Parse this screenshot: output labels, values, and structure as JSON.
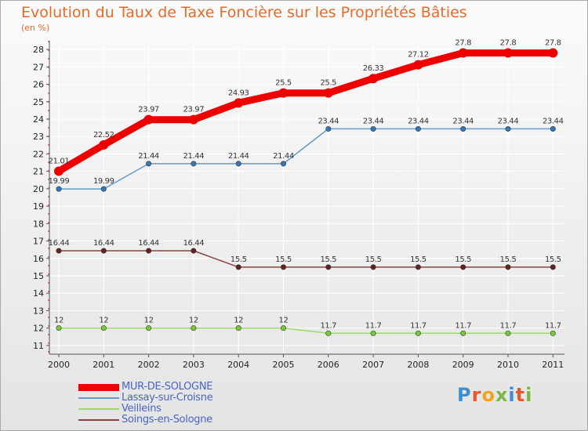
{
  "chart_data": {
    "type": "line",
    "title": "Evolution du Taux de Taxe Foncière sur les Propriétés Bâties",
    "unit_label": "(en %)",
    "x": [
      "2000",
      "2001",
      "2002",
      "2003",
      "2004",
      "2005",
      "2006",
      "2007",
      "2008",
      "2009",
      "2010",
      "2011"
    ],
    "ylim": [
      11,
      28
    ],
    "yticks": [
      "11",
      "12",
      "13",
      "14",
      "15",
      "16",
      "17",
      "18",
      "19",
      "20",
      "21",
      "22",
      "23",
      "24",
      "25",
      "26",
      "27",
      "28"
    ],
    "grid": true,
    "legend_position": "bottom-left",
    "series": [
      {
        "name": "MUR-DE-SOLOGNE",
        "color": "#ee0000",
        "width": 9,
        "values": [
          21.01,
          22.52,
          23.97,
          23.97,
          24.93,
          25.5,
          25.5,
          26.33,
          27.12,
          27.8,
          27.8,
          27.8
        ],
        "labels": [
          "21.01",
          "22.52",
          "23.97",
          "23.97",
          "24.93",
          "25.5",
          "25.5",
          "26.33",
          "27.12",
          "27.8",
          "27.8",
          "27.8"
        ]
      },
      {
        "name": "Lassay-sur-Croisne",
        "color": "#6699cc",
        "marker": "#3377bb",
        "width": 1.5,
        "values": [
          19.99,
          19.99,
          21.44,
          21.44,
          21.44,
          21.44,
          23.44,
          23.44,
          23.44,
          23.44,
          23.44,
          23.44
        ],
        "labels": [
          "19.99",
          "19.99",
          "21.44",
          "21.44",
          "21.44",
          "21.44",
          "23.44",
          "23.44",
          "23.44",
          "23.44",
          "23.44",
          "23.44"
        ]
      },
      {
        "name": "Veilleins",
        "color": "#99dd66",
        "marker": "#77cc33",
        "width": 1.5,
        "values": [
          12,
          12,
          12,
          12,
          12,
          12,
          11.7,
          11.7,
          11.7,
          11.7,
          11.7,
          11.7
        ],
        "labels": [
          "12",
          "12",
          "12",
          "12",
          "12",
          "12",
          "11.7",
          "11.7",
          "11.7",
          "11.7",
          "11.7",
          "11.7"
        ]
      },
      {
        "name": "Soings-en-Sologne",
        "color": "#884444",
        "marker": "#662222",
        "width": 1.5,
        "values": [
          16.44,
          16.44,
          16.44,
          16.44,
          15.5,
          15.5,
          15.5,
          15.5,
          15.5,
          15.5,
          15.5,
          15.5
        ],
        "labels": [
          "16.44",
          "16.44",
          "16.44",
          "16.44",
          "15.5",
          "15.5",
          "15.5",
          "15.5",
          "15.5",
          "15.5",
          "15.5",
          "15.5"
        ]
      }
    ]
  },
  "logo": {
    "letters": [
      "P",
      "r",
      "o",
      "x",
      "i",
      "t",
      "i"
    ],
    "colors": [
      "#3a8fd0",
      "#e8572a",
      "#f2a31b",
      "#7ab648",
      "#3a8fd0",
      "#e8572a",
      "#7ab648"
    ]
  }
}
